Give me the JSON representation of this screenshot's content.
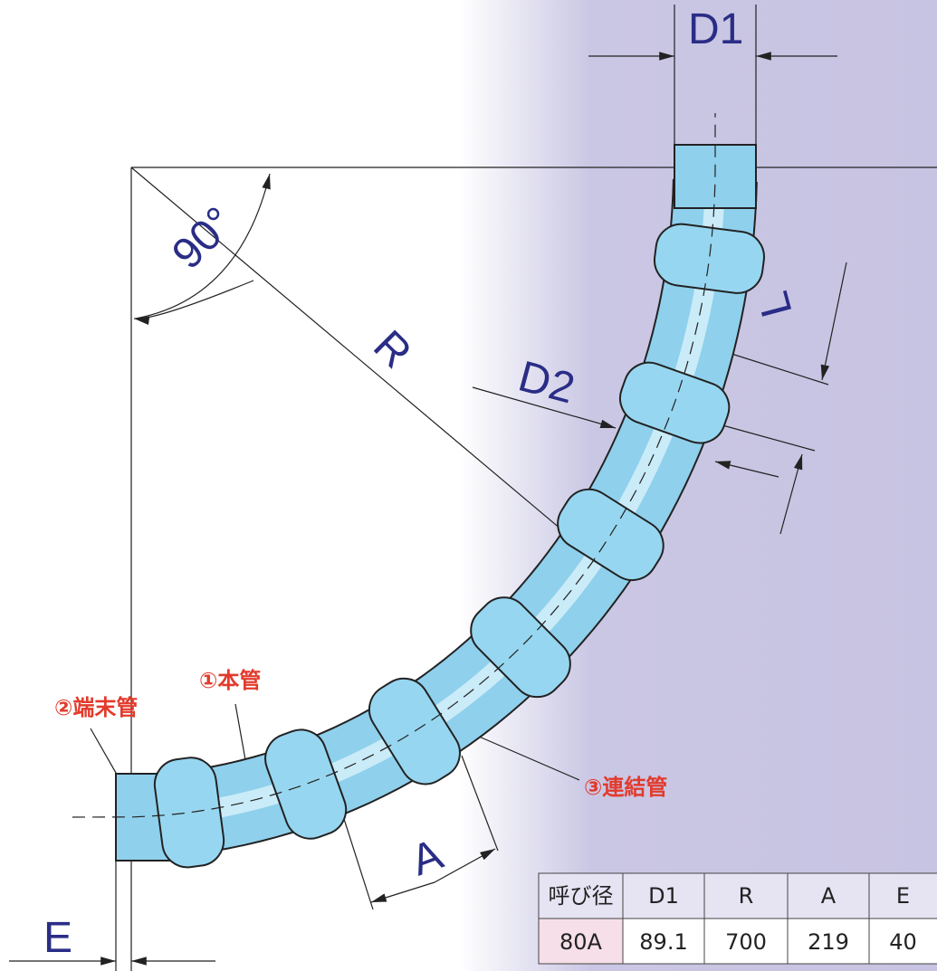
{
  "labels": {
    "d1": "D1",
    "angle": "90°",
    "r": "R",
    "d2": "D2",
    "l": "L",
    "a": "A",
    "e": "E"
  },
  "parts": {
    "main": "①本管",
    "end": "②端末管",
    "joint": "③連結管"
  },
  "table": {
    "header": [
      "呼び径",
      "D1",
      "R",
      "A",
      "E"
    ],
    "rows": [
      [
        "80A",
        89.1,
        700,
        219,
        40
      ]
    ]
  }
}
